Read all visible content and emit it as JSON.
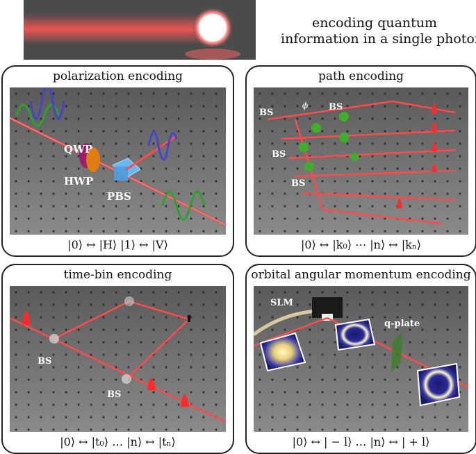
{
  "header": {
    "title_line1": "encoding quantum",
    "title_line2": "information in a single photon"
  },
  "panels": {
    "polarization": {
      "title": "polarization encoding",
      "labels": {
        "qwp": "QWP",
        "hwp": "HWP",
        "pbs": "PBS"
      },
      "formula": "|0⟩ ↔ |H⟩    |1⟩ ↔ |V⟩"
    },
    "path": {
      "title": "path encoding",
      "labels": {
        "bs1": "BS",
        "bs2": "BS",
        "bs3": "BS",
        "bs4": "BS",
        "phi": "ϕ"
      },
      "formula": "|0⟩ ↔ |k₀⟩ ⋯ |n⟩ ↔ |kₙ⟩"
    },
    "timebin": {
      "title": "time-bin encoding",
      "labels": {
        "bs1": "BS",
        "bs2": "BS"
      },
      "formula": "|0⟩ ↔ |t₀⟩ … |n⟩ ↔ |tₙ⟩"
    },
    "oam": {
      "title": "orbital angular momentum encoding",
      "labels": {
        "slm": "SLM",
        "qplate": "q-plate"
      },
      "formula": "|0⟩ ↔ | − l⟩ … |n⟩ ↔ | + l⟩"
    }
  },
  "colors": {
    "beam": "#ff4a4a",
    "table": "#7a7a7a",
    "frame": "#222222"
  }
}
